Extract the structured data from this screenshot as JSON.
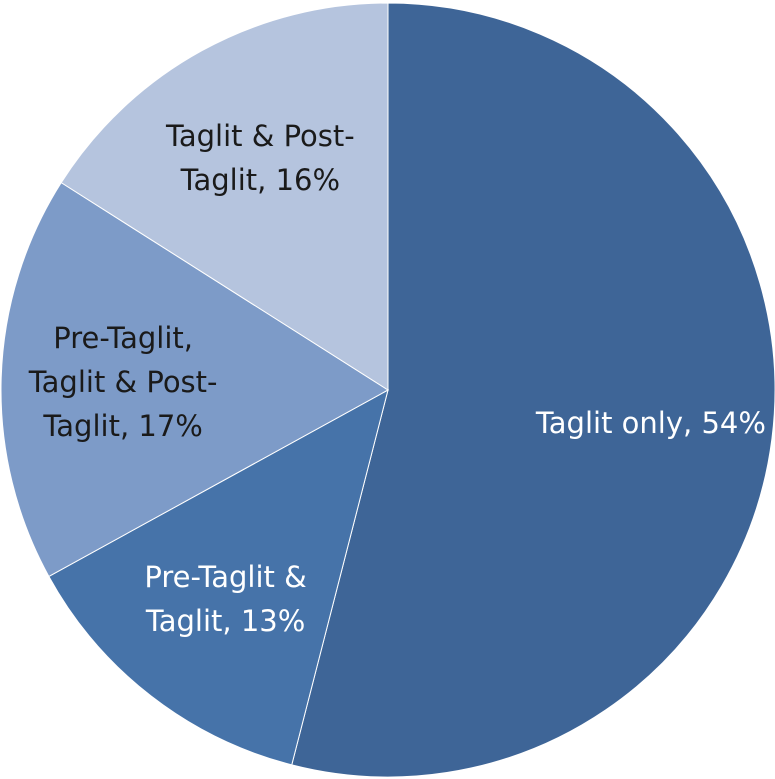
{
  "chart_data": {
    "type": "pie",
    "values": [
      54,
      13,
      17,
      16
    ],
    "value_labels": [
      "Taglit only, 54%",
      "Pre-Taglit & Taglit, 13%",
      "Pre-Taglit, Taglit & Post-Taglit, 17%",
      "Taglit & Post-Taglit, 16%"
    ],
    "colors": [
      "#3e6597",
      "#4673a9",
      "#7d9bc8",
      "#b5c4de"
    ]
  }
}
